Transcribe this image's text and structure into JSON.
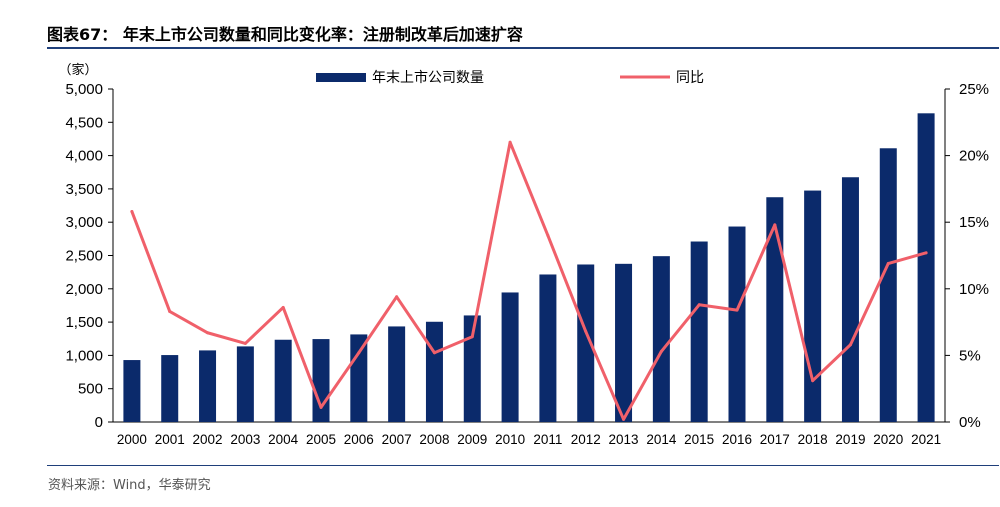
{
  "title": "图表67：  年末上市公司数量和同比变化率：注册制改革后加速扩容",
  "source": "资料来源：Wind，华泰研究",
  "colors": {
    "bar": "#0b2a6b",
    "line": "#f0606a",
    "rule": "#1f3f7a"
  },
  "chart_data": {
    "type": "bar",
    "categories": [
      "2000",
      "2001",
      "2002",
      "2003",
      "2004",
      "2005",
      "2006",
      "2007",
      "2008",
      "2009",
      "2010",
      "2011",
      "2012",
      "2013",
      "2014",
      "2015",
      "2016",
      "2017",
      "2018",
      "2019",
      "2020",
      "2021"
    ],
    "series": [
      {
        "name": "年末上市公司数量",
        "type": "bar",
        "axis": "left",
        "values": [
          930,
          1005,
          1075,
          1135,
          1235,
          1245,
          1315,
          1435,
          1505,
          1600,
          1945,
          2215,
          2365,
          2375,
          2490,
          2710,
          2935,
          3375,
          3475,
          3675,
          4110,
          4635
        ]
      },
      {
        "name": "同比",
        "type": "line",
        "axis": "right",
        "values": [
          15.8,
          8.3,
          6.7,
          5.9,
          8.6,
          1.1,
          5.2,
          9.4,
          5.2,
          6.4,
          21.0,
          14.0,
          6.8,
          0.2,
          5.3,
          8.8,
          8.4,
          14.8,
          3.1,
          5.8,
          11.9,
          12.7
        ]
      }
    ],
    "left_axis": {
      "unit_label": "（家）",
      "ylim": [
        0,
        5000
      ],
      "ticks": [
        "0",
        "500",
        "1,000",
        "1,500",
        "2,000",
        "2,500",
        "3,000",
        "3,500",
        "4,000",
        "4,500",
        "5,000"
      ]
    },
    "right_axis": {
      "ylim": [
        0,
        25
      ],
      "ticks": [
        "0%",
        "5%",
        "10%",
        "15%",
        "20%",
        "25%"
      ]
    },
    "legend": "top-center",
    "grid": false
  }
}
